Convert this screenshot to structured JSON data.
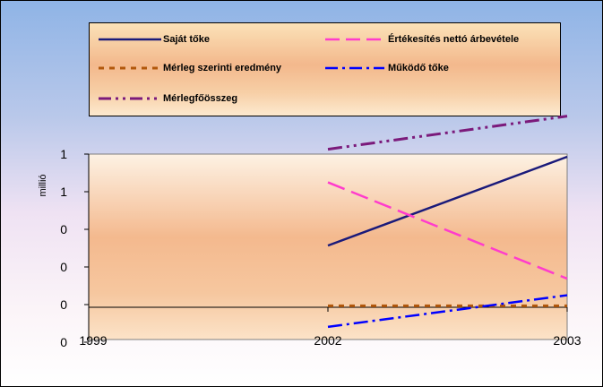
{
  "chart_data": {
    "type": "line",
    "ylabel": "millió",
    "x_ticks": [
      "1999",
      "2002",
      "2003"
    ],
    "y_tick_labels": [
      "1",
      "1",
      "0",
      "0",
      "0",
      "0"
    ],
    "grid": false,
    "legend_placement": "top",
    "series": [
      {
        "name": "Saját tőke",
        "color": "#1a1a7a",
        "dash": "solid",
        "values": [
          {
            "x": "2002",
            "y": 0.41
          },
          {
            "x": "2003",
            "y": 1.0
          }
        ]
      },
      {
        "name": "Értékesítés nettó árbevétele",
        "color": "#ff3ccc",
        "dash": "long",
        "values": [
          {
            "x": "2002",
            "y": 0.83
          },
          {
            "x": "2003",
            "y": 0.19
          }
        ]
      },
      {
        "name": "Mérleg szerinti eredmény",
        "color": "#b2580c",
        "dash": "dot",
        "values": [
          {
            "x": "2002",
            "y": 0.01
          },
          {
            "x": "2003",
            "y": 0.01
          }
        ]
      },
      {
        "name": "Működő tőke",
        "color": "#0000ff",
        "dash": "dashdot",
        "values": [
          {
            "x": "2002",
            "y": -0.13
          },
          {
            "x": "2003",
            "y": 0.08
          }
        ]
      },
      {
        "name": "Mérlegfőösszeg",
        "color": "#7b1a7b",
        "dash": "dashdotdot",
        "values": [
          {
            "x": "2002",
            "y": 1.05
          },
          {
            "x": "2003",
            "y": 1.27
          }
        ]
      }
    ]
  }
}
